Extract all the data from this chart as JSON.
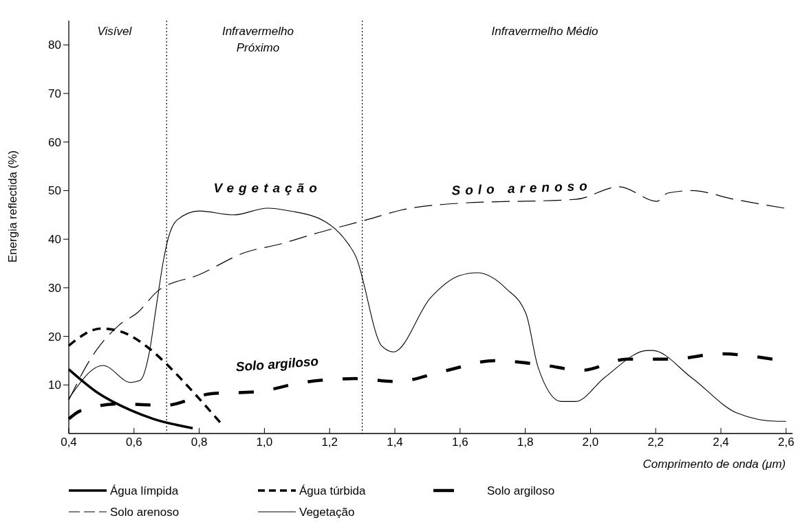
{
  "chart_data": {
    "type": "line",
    "xlabel": "Comprimento de onda (μm)",
    "ylabel": "Energia reflectida (%)",
    "xlim": [
      0.4,
      2.62
    ],
    "ylim": [
      0,
      85
    ],
    "xticks": [
      {
        "value": 0.4,
        "label": "0,4"
      },
      {
        "value": 0.6,
        "label": "0,6"
      },
      {
        "value": 0.8,
        "label": "0,8"
      },
      {
        "value": 1.0,
        "label": "1,0"
      },
      {
        "value": 1.2,
        "label": "1,2"
      },
      {
        "value": 1.4,
        "label": "1,4"
      },
      {
        "value": 1.6,
        "label": "1,6"
      },
      {
        "value": 1.8,
        "label": "1,8"
      },
      {
        "value": 2.0,
        "label": "2,0"
      },
      {
        "value": 2.2,
        "label": "2,2"
      },
      {
        "value": 2.4,
        "label": "2,4"
      },
      {
        "value": 2.6,
        "label": "2,6"
      }
    ],
    "yticks": [
      10,
      20,
      30,
      40,
      50,
      60,
      70,
      80
    ],
    "grid": false,
    "legend": "bottom",
    "marker": "none",
    "ref_lines": [
      {
        "axis": "x",
        "value": 0.7,
        "line_style": "dotted",
        "color": "#000000"
      },
      {
        "axis": "x",
        "value": 1.3,
        "line_style": "dotted",
        "color": "#000000"
      }
    ],
    "annotations": [
      "Visível",
      "Infravermelho\nPróximo",
      "Infravermelho Médio",
      "Vegetação",
      "Solo arenoso",
      "Solo argiloso"
    ],
    "series": [
      {
        "name": "Água límpida",
        "color": "#000000",
        "line_style": "solid",
        "x": [
          0.4,
          0.484,
          0.59,
          0.66,
          0.78
        ],
        "values": [
          13.2,
          8.6,
          4.8,
          3.0,
          1.1
        ]
      },
      {
        "name": "Água túrbida",
        "color": "#000000",
        "line_style": "dashed",
        "x": [
          0.4,
          0.499,
          0.554,
          0.647,
          0.695,
          0.786,
          0.864
        ],
        "values": [
          18.1,
          21.6,
          21.1,
          17.5,
          14.6,
          8.2,
          2.3
        ]
      },
      {
        "name": "Solo argiloso",
        "color": "#000000",
        "line_style": "dashed",
        "x": [
          0.4,
          0.436,
          0.554,
          0.695,
          0.837,
          0.976,
          1.117,
          1.28,
          1.404,
          1.554,
          1.706,
          1.856,
          1.972,
          2.113,
          2.248,
          2.398,
          2.558
        ],
        "values": [
          3.0,
          4.7,
          6.1,
          5.8,
          8.2,
          8.6,
          10.5,
          11.3,
          10.7,
          12.9,
          15.0,
          14.1,
          13.0,
          15.3,
          15.3,
          16.4,
          15.3
        ]
      },
      {
        "name": "Solo arenoso",
        "color": "#000000",
        "line_style": "dashed",
        "x": [
          0.4,
          0.47,
          0.554,
          0.611,
          0.674,
          0.8,
          0.942,
          1.048,
          1.153,
          1.314,
          1.42,
          1.598,
          1.955,
          2.088,
          2.204,
          2.237,
          2.31,
          2.442,
          2.594
        ],
        "values": [
          6.9,
          15.7,
          22.3,
          24.9,
          29.4,
          32.7,
          37.3,
          39.0,
          41.1,
          44.0,
          46.0,
          47.4,
          48.2,
          50.8,
          47.8,
          49.5,
          50.0,
          48.2,
          46.4
        ]
      },
      {
        "name": "Vegetação",
        "color": "#000000",
        "line_style": "solid",
        "x": [
          0.4,
          0.505,
          0.59,
          0.62,
          0.647,
          0.668,
          0.69,
          0.705,
          0.733,
          0.8,
          0.906,
          1.01,
          1.08,
          1.187,
          1.244,
          1.28,
          1.36,
          1.396,
          1.51,
          1.598,
          1.653,
          1.742,
          1.803,
          1.839,
          1.91,
          1.955,
          2.043,
          2.176,
          2.19,
          2.31,
          2.45,
          2.575,
          2.6
        ],
        "values": [
          7.2,
          14.0,
          10.5,
          11.0,
          16.7,
          26.0,
          35.5,
          40.2,
          44.0,
          45.8,
          45.0,
          46.4,
          45.8,
          43.6,
          40.2,
          36.5,
          18.0,
          16.8,
          28.0,
          32.5,
          33.1,
          29.8,
          24.5,
          13.7,
          6.6,
          6.6,
          11.5,
          17.1,
          17.1,
          11.5,
          4.2,
          2.5,
          2.5
        ]
      }
    ]
  }
}
